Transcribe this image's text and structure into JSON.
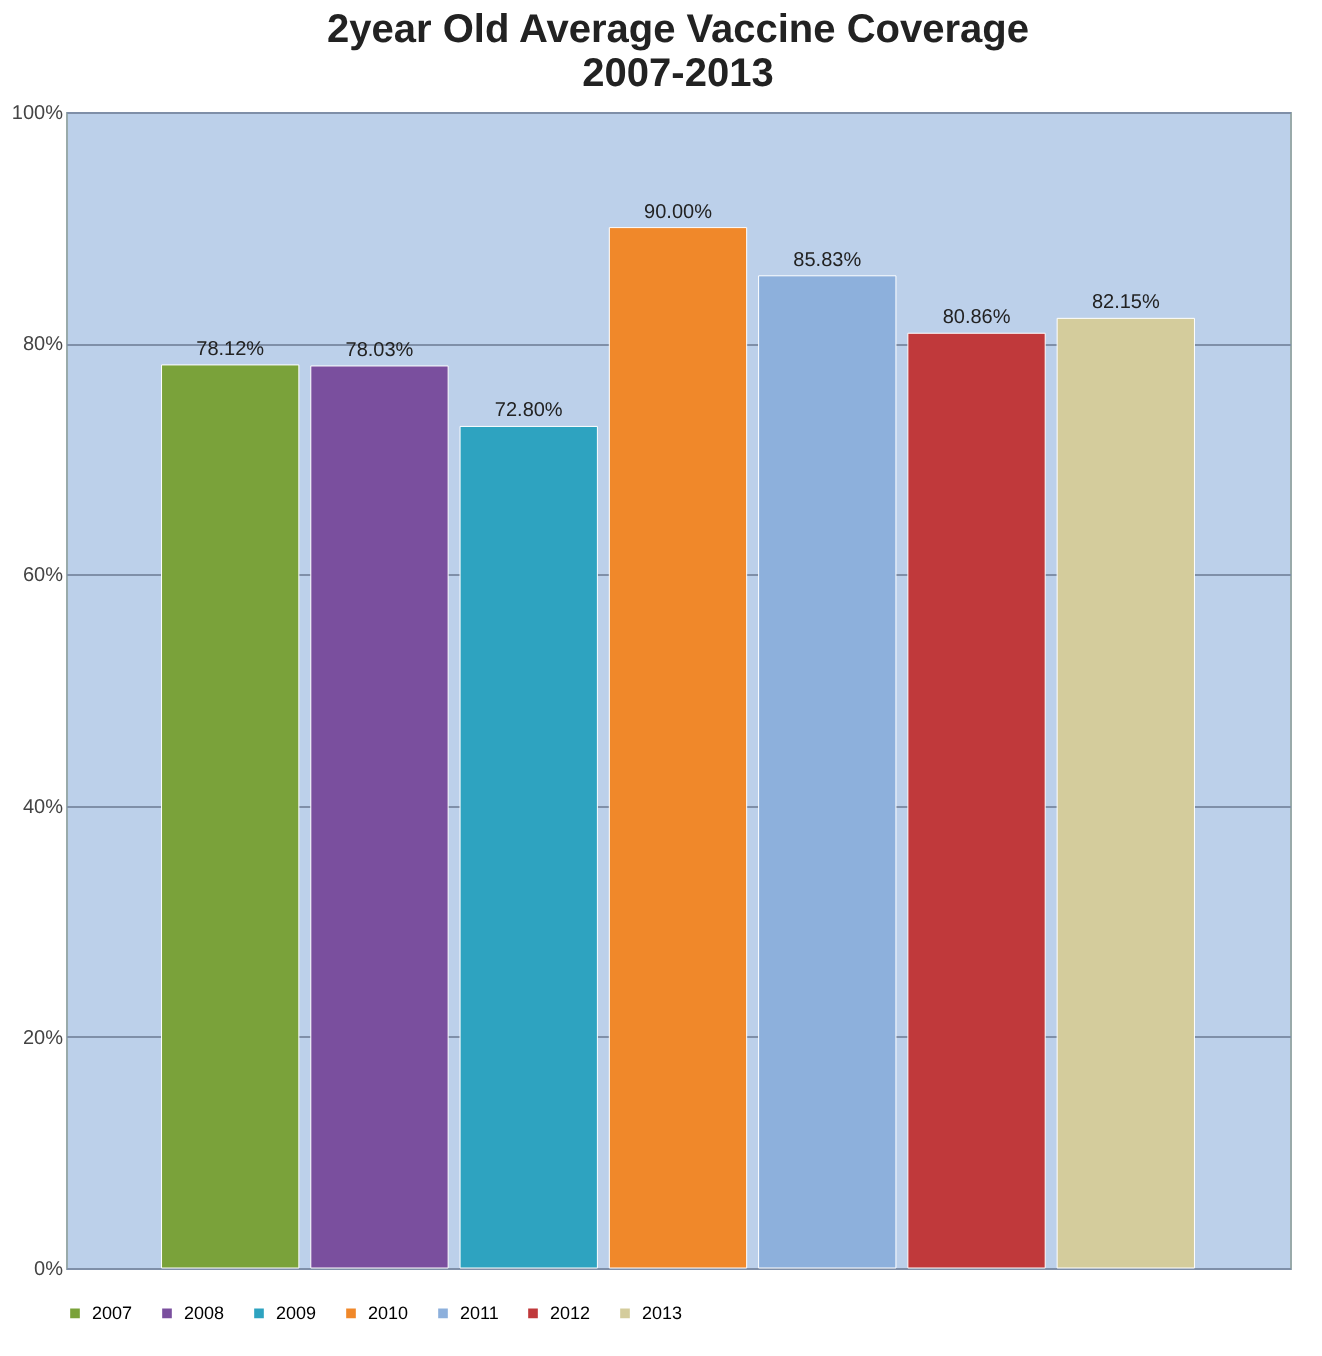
{
  "chart_data": {
    "type": "bar",
    "title": "2year Old Average Vaccine Coverage 2007-2013",
    "categories": [
      null
    ],
    "series": [
      {
        "name": "2007",
        "color": "#7aa23a",
        "values": [
          78.12
        ],
        "value_labels": [
          "78.12%"
        ]
      },
      {
        "name": "2008",
        "color": "#7a4f9e",
        "values": [
          78.03
        ],
        "value_labels": [
          "78.03%"
        ]
      },
      {
        "name": "2009",
        "color": "#2ea3c0",
        "values": [
          72.8
        ],
        "value_labels": [
          "72.80%"
        ]
      },
      {
        "name": "2010",
        "color": "#f0882a",
        "values": [
          90.0
        ],
        "value_labels": [
          "90.00%"
        ]
      },
      {
        "name": "2011",
        "color": "#8db0dc",
        "values": [
          85.83
        ],
        "value_labels": [
          "85.83%"
        ]
      },
      {
        "name": "2012",
        "color": "#c0393b",
        "values": [
          80.86
        ],
        "value_labels": [
          "80.86%"
        ]
      },
      {
        "name": "2013",
        "color": "#d4cc9c",
        "values": [
          82.15
        ],
        "value_labels": [
          "82.15%"
        ]
      }
    ],
    "ylim": [
      0,
      100
    ],
    "yticks": [
      {
        "value": 0,
        "label": "0%"
      },
      {
        "value": 20,
        "label": "20%"
      },
      {
        "value": 40,
        "label": "40%"
      },
      {
        "value": 60,
        "label": "60%"
      },
      {
        "value": 80,
        "label": "80%"
      },
      {
        "value": 100,
        "label": "100%"
      }
    ],
    "grid": "y",
    "legend": "bottom"
  }
}
